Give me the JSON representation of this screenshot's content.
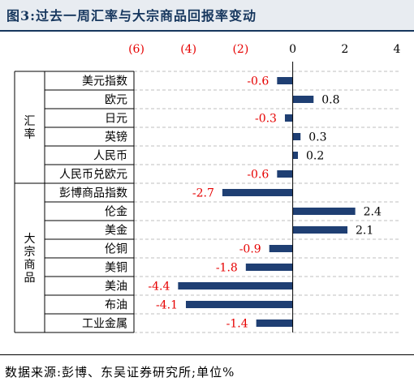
{
  "header": {
    "title": "图3:过去一周汇率与大宗商品回报率变动"
  },
  "footer": {
    "source": "数据来源:彭博、东吴证券研究所;单位%"
  },
  "chart_data": {
    "type": "bar",
    "orientation": "horizontal",
    "xlim": [
      -6,
      4
    ],
    "ticks": [
      {
        "value": -6,
        "label": "(6)"
      },
      {
        "value": -4,
        "label": "(4)"
      },
      {
        "value": -2,
        "label": "(2)"
      },
      {
        "value": 0,
        "label": "0"
      },
      {
        "value": 2,
        "label": "2"
      },
      {
        "value": 4,
        "label": "4"
      }
    ],
    "groups": [
      {
        "label": "汇率",
        "count": 6
      },
      {
        "label": "大宗商品",
        "count": 8
      }
    ],
    "categories": [
      "美元指数",
      "欧元",
      "日元",
      "英镑",
      "人民币",
      "人民币兑欧元",
      "彭博商品指数",
      "伦金",
      "美金",
      "伦铜",
      "美铜",
      "美油",
      "布油",
      "工业金属"
    ],
    "values": [
      -0.6,
      0.8,
      -0.3,
      0.3,
      0.2,
      -0.6,
      -2.7,
      2.4,
      2.1,
      -0.9,
      -1.8,
      -4.4,
      -4.1,
      -1.4
    ],
    "value_labels": [
      "-0.6",
      "0.8",
      "-0.3",
      "0.3",
      "0.2",
      "-0.6",
      "-2.7",
      "2.4",
      "2.1",
      "-0.9",
      "-1.8",
      "-4.4",
      "-4.1",
      "-1.4"
    ],
    "colors": {
      "bar": "#1f3f73",
      "negative_label": "#e60000",
      "positive_label": "#000000",
      "negative_tick": "#e60000",
      "positive_tick": "#000000",
      "grid": "#bfbfbf"
    },
    "grid": true
  }
}
